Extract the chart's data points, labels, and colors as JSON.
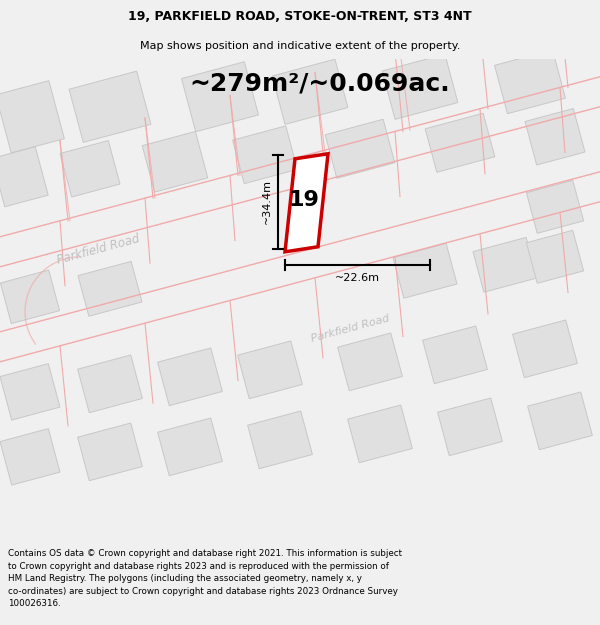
{
  "title_line1": "19, PARKFIELD ROAD, STOKE-ON-TRENT, ST3 4NT",
  "title_line2": "Map shows position and indicative extent of the property.",
  "area_text": "~279m²/~0.069ac.",
  "dim_height": "~34.4m",
  "dim_width": "~22.6m",
  "property_number": "19",
  "footer_text": "Contains OS data © Crown copyright and database right 2021. This information is subject\nto Crown copyright and database rights 2023 and is reproduced with the permission of\nHM Land Registry. The polygons (including the associated geometry, namely x, y\nco-ordinates) are subject to Crown copyright and database rights 2023 Ordnance Survey\n100026316.",
  "bg_color": "#f0f0f0",
  "map_bg": "#ffffff",
  "road_color": "#f0aaaa",
  "building_fill": "#e0e0e0",
  "building_edge": "#c8c8c8",
  "highlight_color": "#cc0000",
  "road_label_color": "#c0c0c0",
  "title_fontsize": 9,
  "subtitle_fontsize": 8,
  "area_fontsize": 18,
  "prop_num_fontsize": 18,
  "dim_fontsize": 8,
  "footer_fontsize": 6.3
}
